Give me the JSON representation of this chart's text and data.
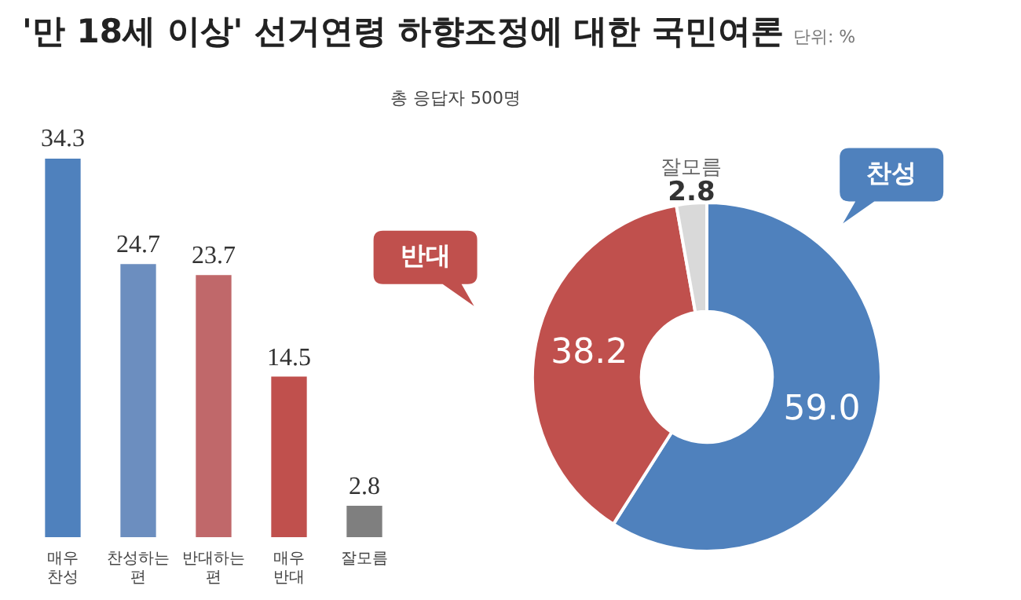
{
  "chart_data": [
    {
      "type": "bar",
      "title": "'만 18세 이상' 선거연령 하향조정에 대한 국민여론",
      "subtitle": "총 응답자 500명",
      "annotations": [
        "단위: %"
      ],
      "categories": [
        "매우 찬성",
        "찬성하는 편",
        "반대하는 편",
        "매우 반대",
        "잘모름"
      ],
      "values": [
        34.3,
        24.7,
        23.7,
        14.5,
        2.8
      ],
      "colors": [
        "#4f81bd",
        "#6c8ebf",
        "#c0686a",
        "#c0504d",
        "#7f7f7f"
      ],
      "data_labels": true
    },
    {
      "type": "donut",
      "categories": [
        "찬성",
        "반대",
        "잘모름"
      ],
      "values": [
        59.0,
        38.2,
        2.8
      ],
      "colors": [
        "#4f81bd",
        "#c0504d",
        "#d9d9d9"
      ],
      "value_labels": [
        "59.0",
        "38.2",
        "2.8"
      ]
    }
  ]
}
